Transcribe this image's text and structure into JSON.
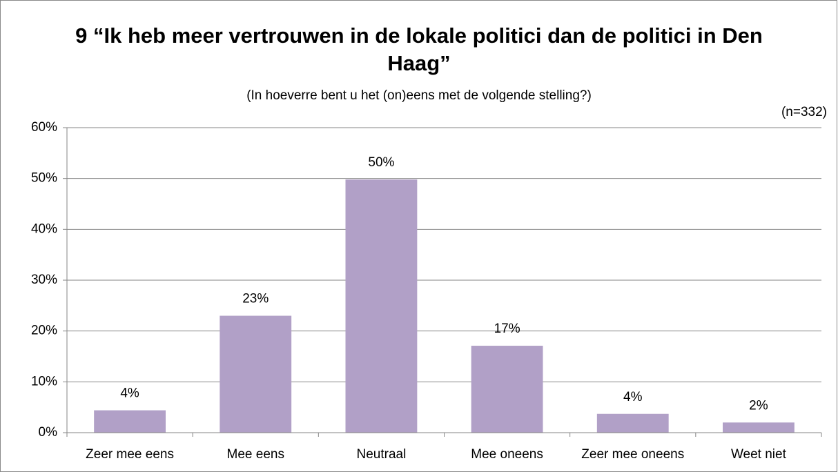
{
  "chart_data": {
    "type": "bar",
    "title": "9 “Ik heb meer vertrouwen in de lokale politici dan de politici in Den Haag”",
    "subtitle": "(In hoeverre bent u het (on)eens met de volgende stelling?)",
    "note": "(n=332)",
    "categories": [
      "Zeer mee eens",
      "Mee eens",
      "Neutraal",
      "Mee oneens",
      "Zeer mee oneens",
      "Weet niet"
    ],
    "values": [
      4.4,
      23,
      49.8,
      17.1,
      3.7,
      2
    ],
    "value_labels": [
      "4%",
      "23%",
      "50%",
      "17%",
      "4%",
      "2%"
    ],
    "color": "#b1a0c7",
    "ylim": [
      0,
      60
    ],
    "yticks": [
      {
        "value": 0,
        "label": "0%"
      },
      {
        "value": 10,
        "label": "10%"
      },
      {
        "value": 20,
        "label": "20%"
      },
      {
        "value": 30,
        "label": "30%"
      },
      {
        "value": 40,
        "label": "40%"
      },
      {
        "value": 50,
        "label": "50%"
      },
      {
        "value": 60,
        "label": "60%"
      }
    ],
    "grid": true
  }
}
